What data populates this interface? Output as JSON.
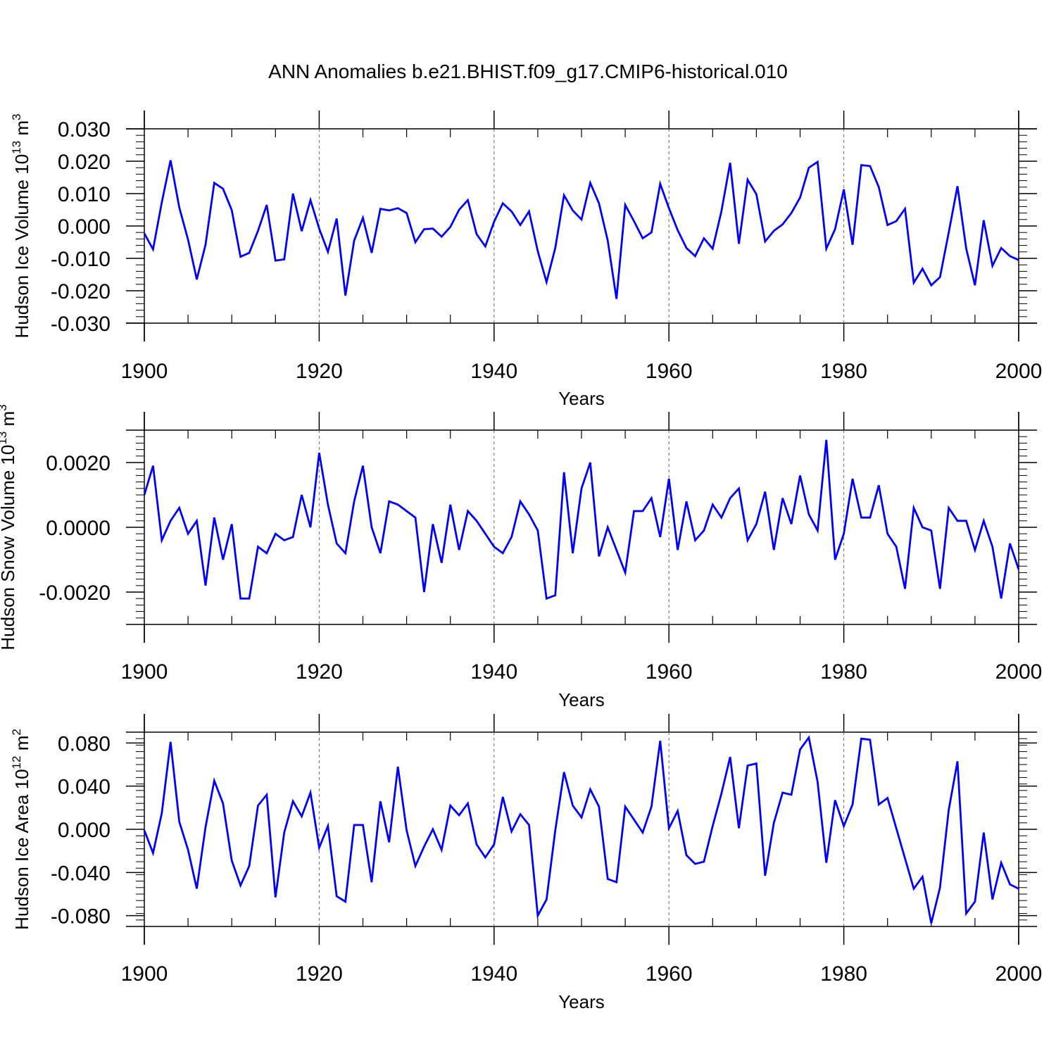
{
  "title": "ANN Anomalies b.e21.BHIST.f09_g17.CMIP6-historical.010",
  "line_color": "#0000ff",
  "chart_data": [
    {
      "type": "line",
      "ylabel": "Hudson Ice Volume 10",
      "ylabel_sup": "13",
      "ylabel_unit": " m",
      "ylabel_unit_sup": "3",
      "xlabel": "Years",
      "xlim": [
        1900,
        2000
      ],
      "ylim": [
        -0.03,
        0.03
      ],
      "xticks": [
        {
          "v": 1900,
          "l": "1900"
        },
        {
          "v": 1920,
          "l": "1920"
        },
        {
          "v": 1940,
          "l": "1940"
        },
        {
          "v": 1960,
          "l": "1960"
        },
        {
          "v": 1980,
          "l": "1980"
        },
        {
          "v": 2000,
          "l": "2000"
        }
      ],
      "yticks": [
        {
          "v": 0.03,
          "l": "0.030"
        },
        {
          "v": 0.02,
          "l": "0.020"
        },
        {
          "v": 0.01,
          "l": "0.010"
        },
        {
          "v": 0.0,
          "l": "0.000"
        },
        {
          "v": -0.01,
          "l": "-0.010"
        },
        {
          "v": -0.02,
          "l": "-0.020"
        },
        {
          "v": -0.03,
          "l": "-0.030"
        }
      ],
      "x_start": 1900,
      "values": [
        -0.0023,
        -0.0072,
        0.0073,
        0.0203,
        0.0057,
        -0.0042,
        -0.0165,
        -0.0058,
        0.0133,
        0.0115,
        0.0049,
        -0.0095,
        -0.0083,
        -0.0015,
        0.0065,
        -0.0107,
        -0.0103,
        0.01,
        -0.0016,
        0.008,
        -0.0008,
        -0.008,
        0.0023,
        -0.0215,
        -0.0045,
        0.0025,
        -0.0083,
        0.0053,
        0.0048,
        0.0055,
        0.004,
        -0.005,
        -0.001,
        -0.0008,
        -0.0033,
        -0.0003,
        0.005,
        0.008,
        -0.0025,
        -0.0063,
        0.0013,
        0.007,
        0.0045,
        0.0003,
        0.0045,
        -0.0078,
        -0.0173,
        -0.0068,
        0.0095,
        0.0048,
        0.002,
        0.0133,
        0.007,
        -0.0045,
        -0.0225,
        0.0065,
        0.0015,
        -0.0038,
        -0.002,
        0.013,
        0.0055,
        -0.0013,
        -0.0068,
        -0.0093,
        -0.0038,
        -0.007,
        0.0045,
        0.0195,
        -0.0055,
        0.0143,
        0.0098,
        -0.0048,
        -0.0015,
        0.0005,
        0.004,
        0.0088,
        0.018,
        0.0198,
        -0.007,
        -0.001,
        0.0113,
        -0.0058,
        0.0188,
        0.0185,
        0.012,
        0.0003,
        0.0015,
        0.0053,
        -0.0175,
        -0.0132,
        -0.0183,
        -0.0158,
        -0.002,
        0.0123,
        -0.007,
        -0.0183,
        0.0018,
        -0.0123,
        -0.0068,
        -0.0093,
        -0.0105
      ]
    },
    {
      "type": "line",
      "ylabel": "Hudson Snow Volume 10",
      "ylabel_sup": "13",
      "ylabel_unit": " m",
      "ylabel_unit_sup": "3",
      "xlabel": "Years",
      "xlim": [
        1900,
        2000
      ],
      "ylim": [
        -0.003,
        0.003
      ],
      "xticks": [
        {
          "v": 1900,
          "l": "1900"
        },
        {
          "v": 1920,
          "l": "1920"
        },
        {
          "v": 1940,
          "l": "1940"
        },
        {
          "v": 1960,
          "l": "1960"
        },
        {
          "v": 1980,
          "l": "1980"
        },
        {
          "v": 2000,
          "l": "2000"
        }
      ],
      "yticks": [
        {
          "v": 0.002,
          "l": "0.0020"
        },
        {
          "v": 0.0,
          "l": "0.0000"
        },
        {
          "v": -0.002,
          "l": "-0.0020"
        }
      ],
      "x_start": 1900,
      "values": [
        0.001,
        0.0019,
        -0.0004,
        0.0002,
        0.0006,
        -0.0002,
        0.0002,
        -0.0018,
        0.0003,
        -0.001,
        0.0001,
        -0.0022,
        -0.0022,
        -0.0006,
        -0.0008,
        -0.0002,
        -0.0004,
        -0.0003,
        0.001,
        0.0,
        0.0023,
        0.0007,
        -0.0005,
        -0.0008,
        0.0008,
        0.0019,
        0.0,
        -0.0008,
        0.0008,
        0.0007,
        0.0005,
        0.0003,
        -0.002,
        0.0001,
        -0.0011,
        0.0007,
        -0.0007,
        0.0005,
        0.0002,
        -0.0002,
        -0.0006,
        -0.0008,
        -0.0003,
        0.0008,
        0.0004,
        -0.0001,
        -0.0022,
        -0.0021,
        0.0017,
        -0.0008,
        0.0012,
        0.002,
        -0.0009,
        0.0,
        -0.0007,
        -0.0014,
        0.0005,
        0.0005,
        0.0009,
        -0.0003,
        0.0015,
        -0.0007,
        0.0008,
        -0.0004,
        -0.0001,
        0.0007,
        0.0003,
        0.0009,
        0.0012,
        -0.0004,
        0.0001,
        0.0011,
        -0.0007,
        0.0009,
        0.0001,
        0.0016,
        0.0004,
        -0.0001,
        0.0027,
        -0.001,
        -0.0002,
        0.0015,
        0.0003,
        0.0003,
        0.0013,
        -0.0002,
        -0.0006,
        -0.0019,
        0.0006,
        0.0,
        -0.0001,
        -0.0019,
        0.0006,
        0.0002,
        0.0002,
        -0.0007,
        0.0002,
        -0.0006,
        -0.0022,
        -0.0005,
        -0.0013
      ]
    },
    {
      "type": "line",
      "ylabel": "Hudson Ice Area 10",
      "ylabel_sup": "12",
      "ylabel_unit": " m",
      "ylabel_unit_sup": "2",
      "xlabel": "Years",
      "xlim": [
        1900,
        2000
      ],
      "ylim": [
        -0.09,
        0.09
      ],
      "xticks": [
        {
          "v": 1900,
          "l": "1900"
        },
        {
          "v": 1920,
          "l": "1920"
        },
        {
          "v": 1940,
          "l": "1940"
        },
        {
          "v": 1960,
          "l": "1960"
        },
        {
          "v": 1980,
          "l": "1980"
        },
        {
          "v": 2000,
          "l": "2000"
        }
      ],
      "yticks": [
        {
          "v": 0.08,
          "l": "0.080"
        },
        {
          "v": 0.04,
          "l": "0.040"
        },
        {
          "v": 0.0,
          "l": "0.000"
        },
        {
          "v": -0.04,
          "l": "-0.040"
        },
        {
          "v": -0.08,
          "l": "-0.080"
        }
      ],
      "x_start": 1900,
      "values": [
        -0.001,
        -0.022,
        0.015,
        0.081,
        0.007,
        -0.019,
        -0.055,
        0.002,
        0.045,
        0.024,
        -0.029,
        -0.052,
        -0.034,
        0.022,
        0.032,
        -0.063,
        -0.003,
        0.026,
        0.012,
        0.034,
        -0.017,
        0.003,
        -0.062,
        -0.067,
        0.004,
        0.004,
        -0.049,
        0.026,
        -0.012,
        0.058,
        -0.001,
        -0.034,
        -0.016,
        0.0,
        -0.019,
        0.022,
        0.013,
        0.024,
        -0.014,
        -0.026,
        -0.014,
        0.03,
        -0.002,
        0.014,
        0.004,
        -0.08,
        -0.065,
        -0.001,
        0.053,
        0.022,
        0.011,
        0.037,
        0.021,
        -0.046,
        -0.049,
        0.021,
        0.009,
        -0.003,
        0.021,
        0.082,
        0.001,
        0.017,
        -0.024,
        -0.032,
        -0.03,
        0.003,
        0.033,
        0.067,
        0.001,
        0.059,
        0.061,
        -0.043,
        0.006,
        0.034,
        0.032,
        0.074,
        0.085,
        0.044,
        -0.031,
        0.027,
        0.003,
        0.023,
        0.084,
        0.083,
        0.023,
        0.029,
        0.001,
        -0.027,
        -0.055,
        -0.044,
        -0.087,
        -0.054,
        0.018,
        0.063,
        -0.078,
        -0.067,
        -0.003,
        -0.065,
        -0.031,
        -0.051,
        -0.055
      ]
    }
  ]
}
